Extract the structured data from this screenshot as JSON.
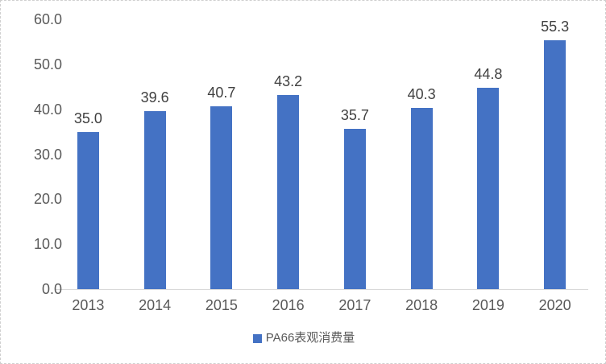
{
  "chart_data": {
    "type": "bar",
    "categories": [
      "2013",
      "2014",
      "2015",
      "2016",
      "2017",
      "2018",
      "2019",
      "2020"
    ],
    "values": [
      35.0,
      39.6,
      40.7,
      43.2,
      35.7,
      40.3,
      44.8,
      55.3
    ],
    "data_labels": [
      "35.0",
      "39.6",
      "40.7",
      "43.2",
      "35.7",
      "40.3",
      "44.8",
      "55.3"
    ],
    "title": "",
    "xlabel": "",
    "ylabel": "",
    "ylim": [
      0,
      60
    ],
    "y_ticks": [
      "0.0",
      "10.0",
      "20.0",
      "30.0",
      "40.0",
      "50.0",
      "60.0"
    ],
    "grid": false,
    "legend": "PA66表观消费量",
    "legend_position": "bottom-center",
    "colors": {
      "bar": "#4472C4",
      "axis_text": "#595959",
      "data_label_text": "#404040",
      "axis_line": "#d9d9d9",
      "legend_swatch": "#4472C4",
      "background": "#ffffff"
    }
  }
}
